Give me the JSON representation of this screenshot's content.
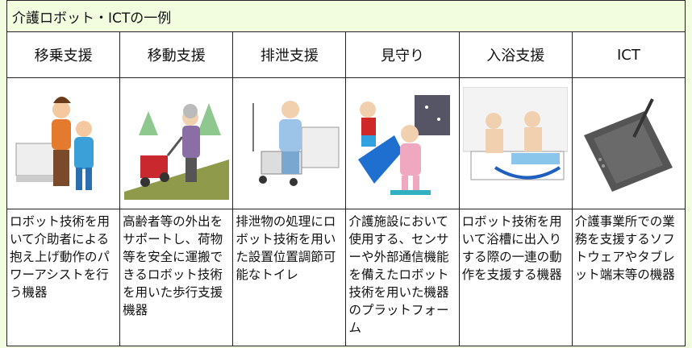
{
  "table": {
    "title": "介護ロボット・ICTの一例",
    "headers": [
      "移乗支援",
      "移動支援",
      "排泄支援",
      "見守り",
      "入浴支援",
      "ICT"
    ],
    "descriptions": [
      "ロボット技術を用いて介助者による抱え上げ動作のパワーアシストを行う機器",
      "高齢者等の外出をサポートし、荷物等を安全に運搬できるロボット技術を用いた歩行支援機器",
      "排泄物の処理にロボット技術を用いた設置位置調節可能なトイレ",
      "介護施設において使用する、センサーや外部通信機能を備えたロボット技術を用いた機器のプラットフォーム",
      "ロボット技術を用いて浴槽に出入りする際の一連の動作を支援する機器",
      "介護事業所での業務を支援するソフトウェアやタブレット端末等の機器"
    ]
  }
}
